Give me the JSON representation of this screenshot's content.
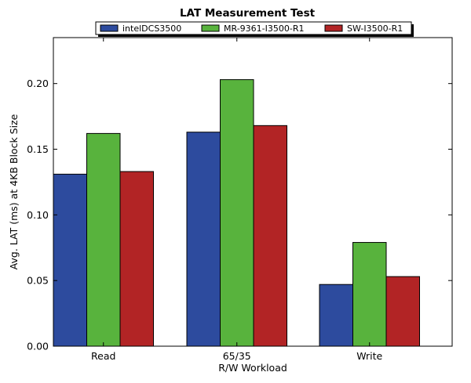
{
  "chart_data": {
    "type": "bar",
    "title": "LAT Measurement Test",
    "xlabel": "R/W Workload",
    "ylabel": "Avg. LAT (ms) at 4KB Block Size",
    "categories": [
      "Read",
      "65/35",
      "Write"
    ],
    "series": [
      {
        "name": "intelDCS3500",
        "color": "#2d4b9e",
        "values": [
          0.131,
          0.163,
          0.047
        ]
      },
      {
        "name": "MR-9361-I3500-R1",
        "color": "#58b33d",
        "values": [
          0.162,
          0.203,
          0.079
        ]
      },
      {
        "name": "SW-I3500-R1",
        "color": "#b22425",
        "values": [
          0.133,
          0.168,
          0.053
        ]
      }
    ],
    "ylim": [
      0,
      0.235
    ],
    "yticks": [
      "0.00",
      "0.05",
      "0.10",
      "0.15",
      "0.20"
    ],
    "grid": false,
    "legend_position": "top-center"
  }
}
